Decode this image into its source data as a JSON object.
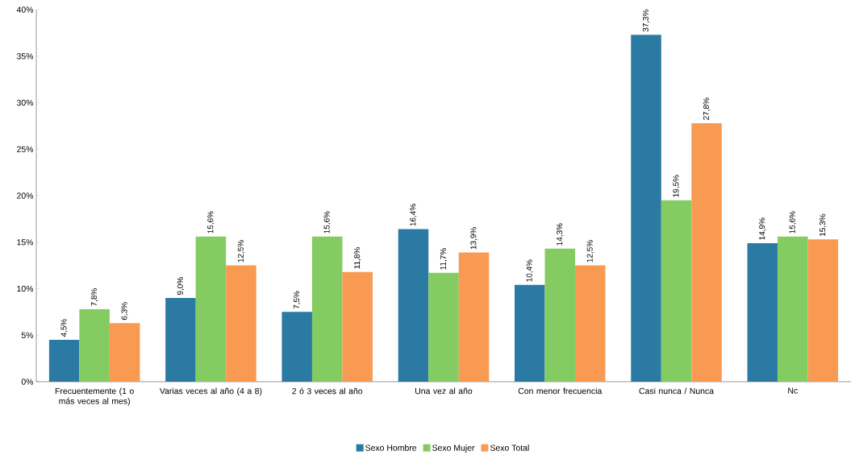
{
  "chart_data": {
    "type": "bar",
    "categories": [
      "Frecuentemente (1 o más veces al mes)",
      "Varias veces al año (4 a 8)",
      "2 ó 3 veces al año",
      "Una vez al año",
      "Con menor frecuencia",
      "Casi nunca / Nunca",
      "Nc"
    ],
    "series": [
      {
        "name": "Sexo Hombre",
        "color": "#2a7aa3",
        "values": [
          4.5,
          9.0,
          7.5,
          16.4,
          10.4,
          37.3,
          14.9
        ],
        "value_labels": [
          "4,5%",
          "9,0%",
          "7,5%",
          "16,4%",
          "10,4%",
          "37,3%",
          "14,9%"
        ]
      },
      {
        "name": "Sexo Mujer",
        "color": "#84cc62",
        "values": [
          7.8,
          15.6,
          15.6,
          11.7,
          14.3,
          19.5,
          15.6
        ],
        "value_labels": [
          "7,8%",
          "15,6%",
          "15,6%",
          "11,7%",
          "14,3%",
          "19,5%",
          "15,6%"
        ]
      },
      {
        "name": "Sexo Total",
        "color": "#f89a52",
        "values": [
          6.3,
          12.5,
          11.8,
          13.9,
          12.5,
          27.8,
          15.3
        ],
        "value_labels": [
          "6,3%",
          "12,5%",
          "11,8%",
          "13,9%",
          "12,5%",
          "27,8%",
          "15,3%"
        ]
      }
    ],
    "ylim": [
      0,
      40
    ],
    "yticks": [
      {
        "value": 0,
        "label": "0%"
      },
      {
        "value": 5,
        "label": "5%"
      },
      {
        "value": 10,
        "label": "10%"
      },
      {
        "value": 15,
        "label": "15%"
      },
      {
        "value": 20,
        "label": "20%"
      },
      {
        "value": 25,
        "label": "25%"
      },
      {
        "value": 30,
        "label": "30%"
      },
      {
        "value": 35,
        "label": "35%"
      },
      {
        "value": 40,
        "label": "40%"
      }
    ],
    "grid": false,
    "legend": "bottom"
  }
}
